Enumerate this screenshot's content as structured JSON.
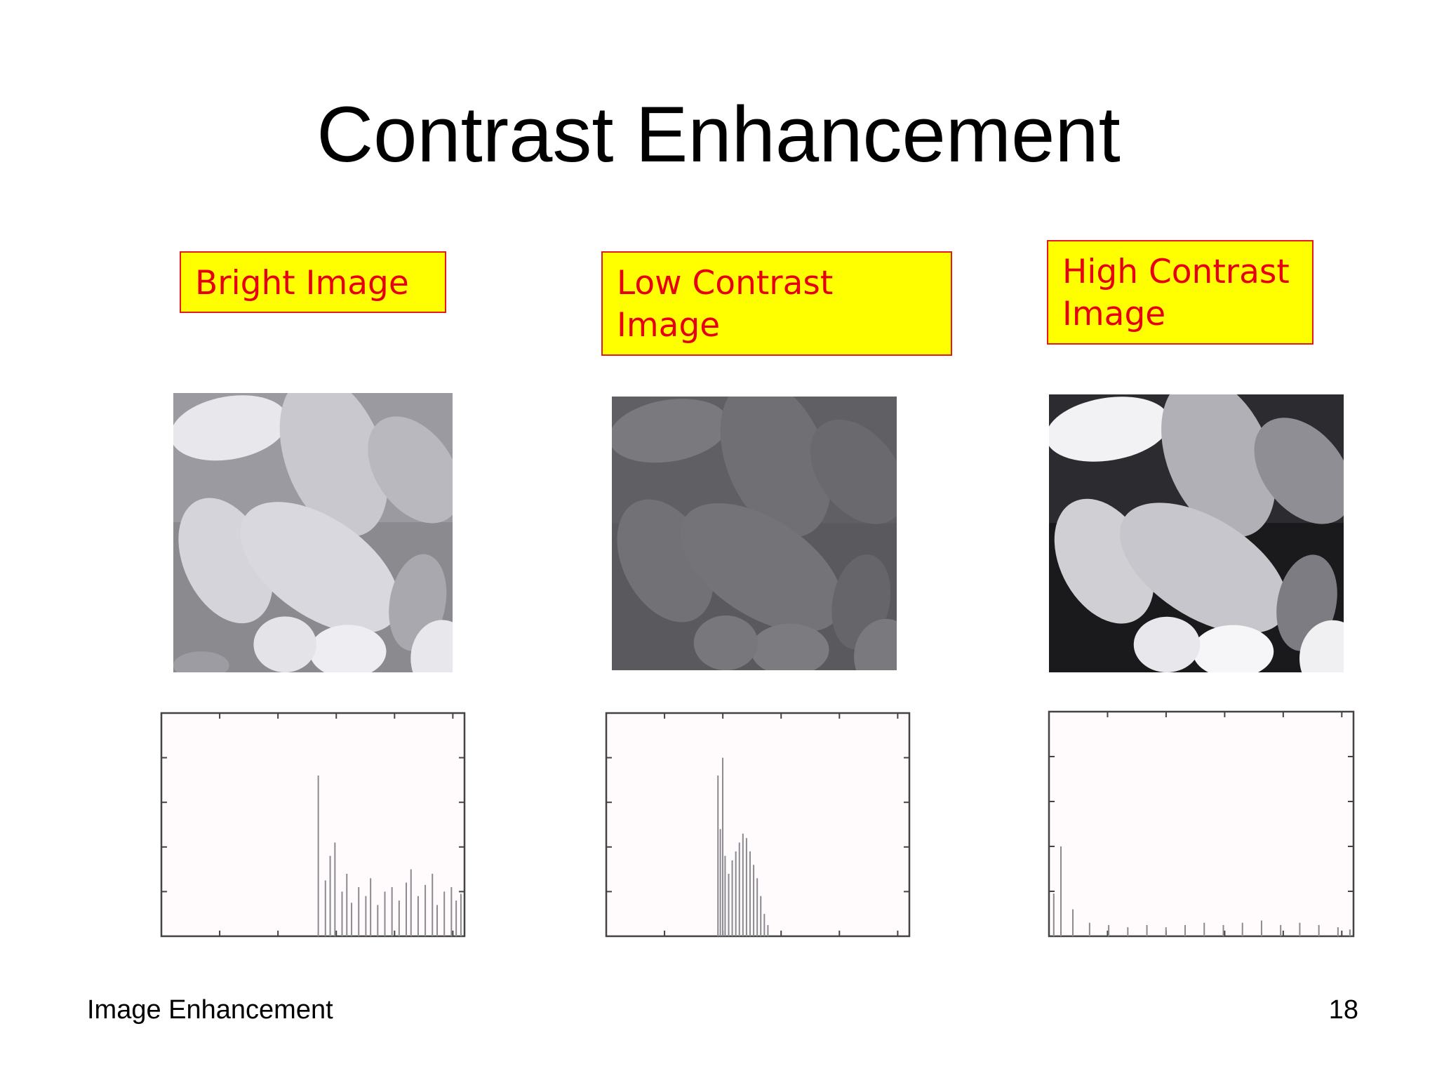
{
  "slide": {
    "title": "Contrast Enhancement",
    "footer_text": "Image Enhancement",
    "page_number": "18"
  },
  "labels": {
    "bright": "Bright Image",
    "low_line1": "Low Contrast",
    "low_line2": "Image",
    "high_line1": "High Contrast",
    "high_line2": "Image"
  },
  "colors": {
    "label_background": "#ffff00",
    "label_text": "#e60012",
    "label_border": "#e21b1b"
  },
  "images": [
    {
      "name": "bright-image",
      "icon": "beans-photo",
      "tone": "bright"
    },
    {
      "name": "low-contrast-image",
      "icon": "beans-photo",
      "tone": "low"
    },
    {
      "name": "high-contrast-image",
      "icon": "beans-photo",
      "tone": "high"
    }
  ],
  "chart_data": [
    {
      "type": "bar",
      "name": "bright-histogram",
      "xlim": [
        0,
        255
      ],
      "x": [
        132,
        138,
        142,
        146,
        152,
        156,
        160,
        166,
        172,
        176,
        182,
        188,
        194,
        200,
        206,
        210,
        216,
        222,
        228,
        232,
        238,
        244,
        248,
        252
      ],
      "values": [
        0.72,
        0.25,
        0.36,
        0.42,
        0.2,
        0.28,
        0.15,
        0.22,
        0.18,
        0.26,
        0.14,
        0.2,
        0.22,
        0.16,
        0.24,
        0.3,
        0.18,
        0.23,
        0.28,
        0.14,
        0.2,
        0.22,
        0.16,
        0.19
      ],
      "grid": false
    },
    {
      "type": "bar",
      "name": "low-contrast-histogram",
      "xlim": [
        0,
        255
      ],
      "x": [
        94,
        96,
        98,
        100,
        103,
        106,
        109,
        112,
        115,
        118,
        121,
        124,
        127,
        130,
        133,
        136
      ],
      "values": [
        0.72,
        0.48,
        0.8,
        0.36,
        0.28,
        0.34,
        0.38,
        0.42,
        0.46,
        0.44,
        0.38,
        0.32,
        0.26,
        0.18,
        0.1,
        0.05
      ],
      "grid": false
    },
    {
      "type": "bar",
      "name": "high-contrast-histogram",
      "xlim": [
        0,
        255
      ],
      "x": [
        4,
        10,
        20,
        34,
        50,
        66,
        82,
        98,
        114,
        130,
        146,
        162,
        178,
        194,
        210,
        226,
        242,
        252
      ],
      "values": [
        0.19,
        0.4,
        0.12,
        0.06,
        0.05,
        0.04,
        0.05,
        0.04,
        0.05,
        0.06,
        0.05,
        0.06,
        0.07,
        0.05,
        0.06,
        0.05,
        0.04,
        0.03
      ],
      "grid": false
    }
  ]
}
